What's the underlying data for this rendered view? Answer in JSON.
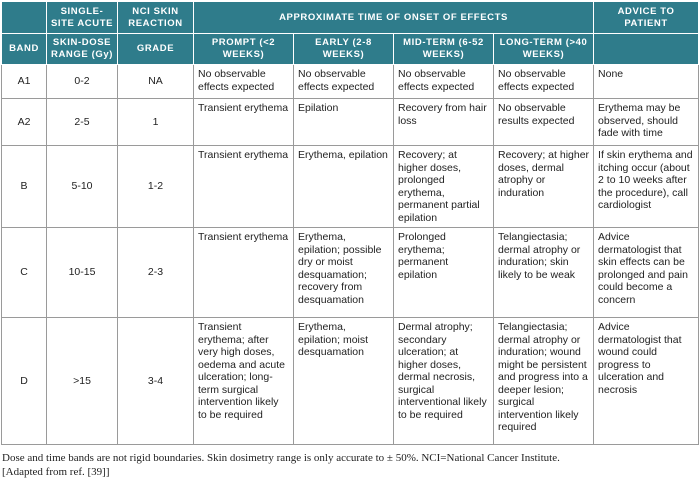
{
  "header": {
    "top": {
      "dose": "SINGLE-SITE ACUTE",
      "grade": "NCI SKIN REACTION",
      "onset": "APPROXIMATE TIME OF ONSET OF EFFECTS",
      "advice": "ADVICE TO PATIENT"
    },
    "sub": {
      "band": "BAND",
      "dose": "SKIN-DOSE RANGE (Gy)",
      "grade": "GRADE",
      "prompt": "PROMPT (<2 WEEKS)",
      "early": "EARLY (2-8 WEEKS)",
      "mid": "MID-TERM (6-52 WEEKS)",
      "long": "LONG-TERM (>40 WEEKS)"
    }
  },
  "table": {
    "rows": [
      [
        "A1",
        "0-2",
        "NA",
        "No observable effects expected",
        "No observable effects expected",
        "No observable effects expected",
        "No observable effects expected",
        "None"
      ],
      [
        "A2",
        "2-5",
        "1",
        "Transient erythema",
        "Epilation",
        "Recovery from hair loss",
        "No observable results expected",
        "Erythema may be observed, should fade with time"
      ],
      [
        "B",
        "5-10",
        "1-2",
        "Transient erythema",
        "Erythema, epilation",
        "Recovery; at higher doses, prolonged erythema, permanent partial epilation",
        "Recovery; at higher doses, dermal atrophy or induration",
        "If skin erythema and itching occur (about 2 to 10 weeks after the procedure), call cardiologist"
      ],
      [
        "C",
        "10-15",
        "2-3",
        "Transient erythema",
        "Erythema, epilation; possible dry or moist desquamation; recovery from desquamation",
        "Prolonged erythema; permanent epilation",
        "Telangiectasia; dermal atrophy or induration; skin likely to be weak",
        "Advice dermatologist that skin effects can be prolonged and pain could become a concern"
      ],
      [
        "D",
        ">15",
        "3-4",
        "Transient erythema; after very high doses, oedema and acute ulceration; long-term surgical intervention likely to be required",
        "Erythema, epilation; moist desquamation",
        "Dermal atrophy; secondary ulceration; at higher doses, dermal necrosis, surgical interventional likely to be required",
        "Telangiectasia; dermal atrophy or induration; wound might be persistent and progress into a deeper lesion; surgical intervention likely required",
        "Advice dermatologist that wound could progress to ulceration and necrosis"
      ]
    ]
  },
  "footnote": [
    "Dose and time bands are not rigid boundaries. Skin dosimetry range is only accurate to ± 50%. NCI=National Cancer Institute.",
    "[Adapted from ref. [39]]"
  ]
}
